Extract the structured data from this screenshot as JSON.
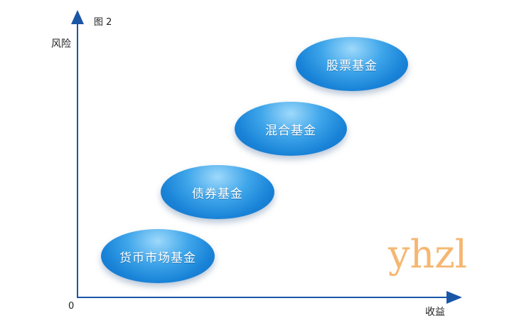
{
  "figure_label": "图 2",
  "axes": {
    "y_label": "风险",
    "x_label": "收益",
    "origin": "0"
  },
  "funds": [
    {
      "label": "货币市场基金"
    },
    {
      "label": "债券基金"
    },
    {
      "label": "混合基金"
    },
    {
      "label": "股票基金"
    }
  ],
  "colors": {
    "axis": "#1a56a6",
    "fund_fill": "#1a84d8",
    "fund_highlight": "#9ed9fb",
    "watermark": "#f5b772"
  },
  "watermark": "yhzl"
}
